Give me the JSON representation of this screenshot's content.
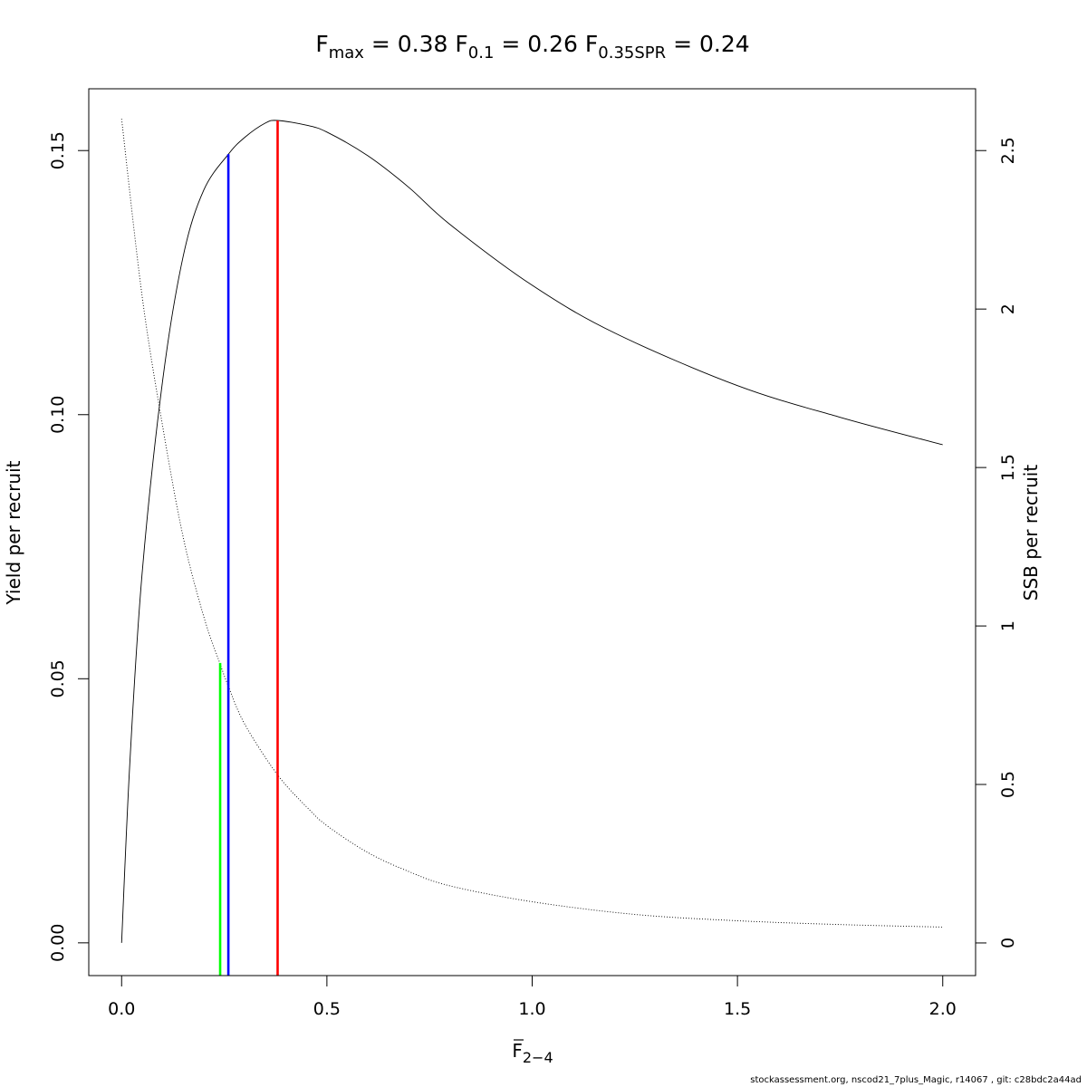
{
  "chart_data": {
    "type": "line",
    "title": {
      "fmax": {
        "sub": "max",
        "value": "0.38"
      },
      "f01": {
        "sub": "0.1",
        "value": "0.26"
      },
      "fspr": {
        "sub": "0.35SPR",
        "value": "0.24"
      }
    },
    "xlabel": {
      "base": "F",
      "sub": "2−4"
    },
    "ylabel_left": "Yield per recruit",
    "ylabel_right": "SSB per recruit",
    "xlim": [
      -0.08,
      2.08
    ],
    "ylim_left": [
      -0.0062,
      0.1617
    ],
    "ylim_right": [
      -0.103,
      2.695
    ],
    "x_ticks": [
      "0.0",
      "0.5",
      "1.0",
      "1.5",
      "2.0"
    ],
    "y_left_ticks": [
      "0.00",
      "0.05",
      "0.10",
      "0.15"
    ],
    "y_right_ticks": [
      "0",
      "0.5",
      "1",
      "1.5",
      "2",
      "2.5"
    ],
    "series": [
      {
        "axis": "left",
        "style": "solid",
        "x": [
          0,
          0.02,
          0.05,
          0.1,
          0.15,
          0.2,
          0.26,
          0.3,
          0.35,
          0.38,
          0.45,
          0.5,
          0.6,
          0.7,
          0.8,
          1.0,
          1.2,
          1.5,
          1.75,
          2.0
        ],
        "y": [
          0,
          0.034,
          0.07,
          0.1065,
          0.13,
          0.1425,
          0.1493,
          0.1525,
          0.1552,
          0.1557,
          0.1548,
          0.1535,
          0.149,
          0.143,
          0.136,
          0.1245,
          0.1155,
          0.1055,
          0.0995,
          0.0943
        ]
      },
      {
        "axis": "right",
        "style": "dotted",
        "x": [
          0,
          0.05,
          0.1,
          0.15,
          0.2,
          0.24,
          0.26,
          0.3,
          0.38,
          0.45,
          0.5,
          0.6,
          0.7,
          0.8,
          1.0,
          1.25,
          1.5,
          1.75,
          2.0
        ],
        "y": [
          2.6,
          2.04,
          1.63,
          1.28,
          1.03,
          0.88,
          0.81,
          0.69,
          0.53,
          0.43,
          0.37,
          0.285,
          0.225,
          0.18,
          0.13,
          0.09,
          0.07,
          0.058,
          0.05
        ]
      }
    ],
    "reference_lines": [
      {
        "x": 0.38,
        "y_top": 0.1557,
        "color": "#ff0000"
      },
      {
        "x": 0.26,
        "y_top": 0.1493,
        "color": "#0000ff"
      },
      {
        "x": 0.24,
        "y_top": 0.053,
        "color": "#00ff00"
      }
    ],
    "footer": "stockassessment.org, nscod21_7plus_Magic, r14067 , git: c28bdc2a44ad"
  }
}
